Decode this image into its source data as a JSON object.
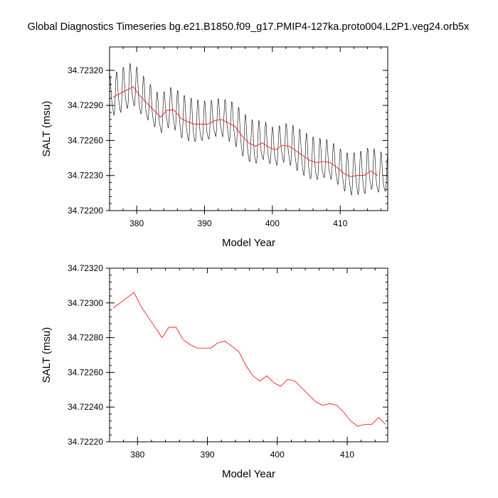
{
  "figure": {
    "title": "Global Diagnostics Timeseries bg.e21.B1850.f09_g17.PMIP4-127ka.proto004.L2P1.veg24.orb5x",
    "colors": {
      "monthly": "#000000",
      "annual": "#ff0000",
      "axes": "#000000"
    }
  },
  "chart_data": [
    {
      "type": "line",
      "title": "Global Diagnostics Timeseries bg.e21.B1850.f09_g17.PMIP4-127ka.proto004.L2P1.veg24.orb5x",
      "xlabel": "Model Year",
      "ylabel": "SALT (msu)",
      "xlim": [
        376.0,
        417.0
      ],
      "ylim": [
        34.722,
        34.7234
      ],
      "x_ticks": [
        380,
        390,
        400,
        410
      ],
      "x_tick_labels": [
        "380",
        "390",
        "400",
        "410"
      ],
      "y_ticks": [
        34.722,
        34.7223,
        34.7226,
        34.7229,
        34.7232
      ],
      "y_tick_labels": [
        "34.72200",
        "34.72230",
        "34.72260",
        "34.72290",
        "34.72320"
      ],
      "grid": false,
      "monthly_cycle": {
        "start_year": 376.0,
        "end_year": 417.0,
        "high_amplitude": 0.0003,
        "low_amplitude": 8e-05,
        "note": "black monthly seasonal cycle; peaks in early year, trough mid-year"
      },
      "series": [
        {
          "name": "",
          "style": "annual",
          "x": [
            376.5,
            377.5,
            378.5,
            379.5,
            380.5,
            381.5,
            382.5,
            383.5,
            384.5,
            385.5,
            386.5,
            387.5,
            388.5,
            389.5,
            390.5,
            391.5,
            392.5,
            393.5,
            394.5,
            395.5,
            396.5,
            397.5,
            398.5,
            399.5,
            400.5,
            401.5,
            402.5,
            403.5,
            404.5,
            405.5,
            406.5,
            407.5,
            408.5,
            409.5,
            410.5,
            411.5,
            412.5,
            413.5,
            414.5,
            415.5
          ],
          "y": [
            34.72297,
            34.723,
            34.72303,
            34.72306,
            34.72298,
            34.72292,
            34.72286,
            34.7228,
            34.72286,
            34.72286,
            34.72279,
            34.72276,
            34.72274,
            34.72274,
            34.72274,
            34.72277,
            34.72278,
            34.72275,
            34.72272,
            34.72264,
            34.72258,
            34.72255,
            34.72258,
            34.72254,
            34.72252,
            34.72256,
            34.72255,
            34.72251,
            34.72247,
            34.72243,
            34.72241,
            34.72242,
            34.72241,
            34.72237,
            34.72232,
            34.72229,
            34.7223,
            34.7223,
            34.72234,
            34.7223
          ]
        }
      ]
    },
    {
      "type": "line",
      "title": "",
      "xlabel": "Model Year",
      "ylabel": "SALT (msu)",
      "xlim": [
        376.0,
        415.8
      ],
      "ylim": [
        34.7222,
        34.7232
      ],
      "x_ticks": [
        380,
        390,
        400,
        410
      ],
      "x_tick_labels": [
        "380",
        "390",
        "400",
        "410"
      ],
      "y_ticks": [
        34.7222,
        34.7224,
        34.7226,
        34.7228,
        34.723,
        34.7232
      ],
      "y_tick_labels": [
        "34.72220",
        "34.72240",
        "34.72260",
        "34.72280",
        "34.72300",
        "34.72320"
      ],
      "grid": false,
      "series": [
        {
          "name": "",
          "style": "annual",
          "x": [
            376.5,
            377.5,
            378.5,
            379.5,
            380.5,
            381.5,
            382.5,
            383.5,
            384.5,
            385.5,
            386.5,
            387.5,
            388.5,
            389.5,
            390.5,
            391.5,
            392.5,
            393.5,
            394.5,
            395.5,
            396.5,
            397.5,
            398.5,
            399.5,
            400.5,
            401.5,
            402.5,
            403.5,
            404.5,
            405.5,
            406.5,
            407.5,
            408.5,
            409.5,
            410.5,
            411.5,
            412.5,
            413.5,
            414.5,
            415.5
          ],
          "y": [
            34.72297,
            34.723,
            34.72303,
            34.72306,
            34.72298,
            34.72292,
            34.72286,
            34.7228,
            34.72286,
            34.72286,
            34.72279,
            34.72276,
            34.72274,
            34.72274,
            34.72274,
            34.72277,
            34.72278,
            34.72275,
            34.72272,
            34.72264,
            34.72258,
            34.72255,
            34.72258,
            34.72254,
            34.72252,
            34.72256,
            34.72255,
            34.72251,
            34.72247,
            34.72243,
            34.72241,
            34.72242,
            34.72241,
            34.72237,
            34.72232,
            34.72229,
            34.7223,
            34.7223,
            34.72234,
            34.7223
          ]
        }
      ]
    }
  ]
}
